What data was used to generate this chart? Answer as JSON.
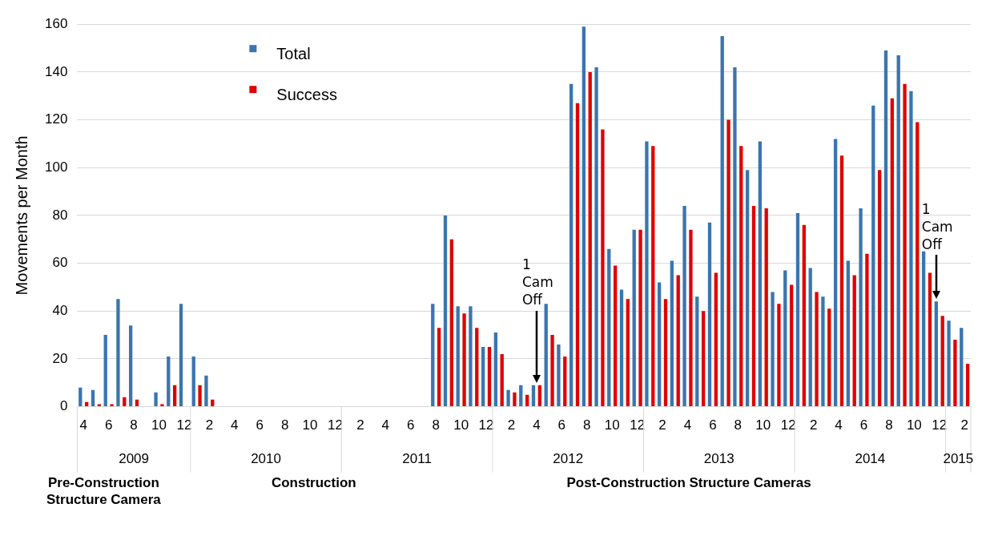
{
  "chart_data": {
    "type": "bar",
    "ylabel": "Movements per Month",
    "categories": [
      "4",
      null,
      "6",
      null,
      "8",
      null,
      "10",
      null,
      "12",
      null,
      "2",
      null,
      "4",
      null,
      "6",
      null,
      "8",
      null,
      "10",
      null,
      "12",
      null,
      "2",
      null,
      "4",
      null,
      "6",
      null,
      "8",
      null,
      "10",
      null,
      "12",
      null,
      "2",
      null,
      "4",
      null,
      "6",
      null,
      "8",
      null,
      "10",
      null,
      "12",
      null,
      "2",
      null,
      "4",
      null,
      "6",
      null,
      "8",
      null,
      "10",
      null,
      "12",
      null,
      "2",
      null,
      "4",
      null,
      "6",
      null,
      "8",
      null,
      "10",
      null,
      "12",
      null,
      "2"
    ],
    "series": [
      {
        "name": "Total",
        "color": "#3a75b0",
        "values": [
          8,
          7,
          30,
          45,
          34,
          0,
          6,
          21,
          43,
          21,
          13,
          0,
          0,
          0,
          0,
          0,
          0,
          0,
          0,
          0,
          0,
          0,
          0,
          0,
          0,
          0,
          0,
          0,
          43,
          80,
          42,
          42,
          25,
          31,
          7,
          9,
          9,
          43,
          26,
          135,
          159,
          142,
          66,
          49,
          74,
          111,
          52,
          61,
          84,
          46,
          77,
          155,
          142,
          99,
          111,
          48,
          57,
          81,
          58,
          46,
          112,
          61,
          83,
          126,
          149,
          147,
          132,
          65,
          44,
          36,
          33
        ]
      },
      {
        "name": "Success",
        "color": "#e00000",
        "values": [
          2,
          1,
          1,
          4,
          3,
          0,
          1,
          9,
          0,
          9,
          3,
          0,
          0,
          0,
          0,
          0,
          0,
          0,
          0,
          0,
          0,
          0,
          0,
          0,
          0,
          0,
          0,
          0,
          33,
          70,
          39,
          33,
          25,
          22,
          6,
          5,
          9,
          30,
          21,
          127,
          140,
          116,
          59,
          45,
          74,
          109,
          45,
          55,
          74,
          40,
          56,
          120,
          109,
          84,
          83,
          43,
          51,
          76,
          48,
          41,
          105,
          55,
          64,
          99,
          129,
          135,
          119,
          56,
          38,
          28,
          18
        ]
      }
    ],
    "ylim": [
      0,
      160
    ],
    "yticks": [
      0,
      20,
      40,
      60,
      80,
      100,
      120,
      140,
      160
    ],
    "grid": "y",
    "legend": "top left",
    "annotations": [
      "2009",
      "2010",
      "2011",
      "2012",
      "2013",
      "2014",
      "2015",
      "Pre-Construction Structure Camera",
      "Construction",
      "Post-Construction Structure Cameras",
      "1 Cam Off",
      "1 Cam Off"
    ]
  }
}
